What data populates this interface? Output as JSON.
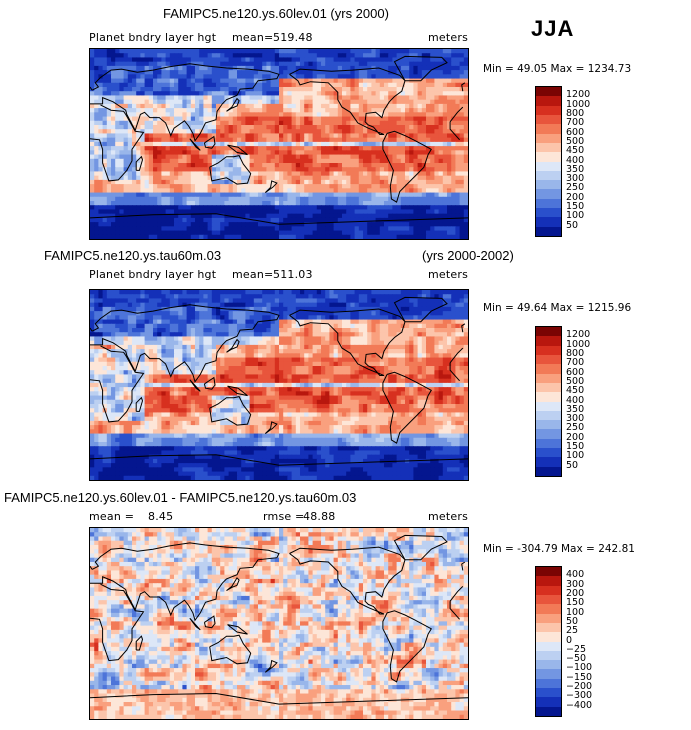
{
  "season": "JJA",
  "chart_data": [
    {
      "type": "heatmap",
      "title": "FAMIPC5.ne120.ys.60lev.01 (yrs 2000)",
      "variable": "Planet bndry layer hgt",
      "mean_text": "mean=",
      "mean_value": "519.48",
      "units": "meters",
      "min_label": "Min =",
      "min_value": "49.05",
      "max_label": "Max =",
      "max_value": "1234.73",
      "colorbar_ticks": [
        "1200",
        "1000",
        "800",
        "700",
        "600",
        "500",
        "450",
        "400",
        "350",
        "300",
        "250",
        "200",
        "150",
        "100",
        "50"
      ]
    },
    {
      "type": "heatmap",
      "title_left": "FAMIPC5.ne120.ys.tau60m.03",
      "title_right": "(yrs 2000-2002)",
      "variable": "Planet bndry layer hgt",
      "mean_text": "mean=",
      "mean_value": "511.03",
      "units": "meters",
      "min_label": "Min =",
      "min_value": "49.64",
      "max_label": "Max =",
      "max_value": "1215.96",
      "colorbar_ticks": [
        "1200",
        "1000",
        "800",
        "700",
        "600",
        "500",
        "450",
        "400",
        "350",
        "300",
        "250",
        "200",
        "150",
        "100",
        "50"
      ]
    },
    {
      "type": "heatmap",
      "title": "FAMIPC5.ne120.ys.60lev.01 - FAMIPC5.ne120.ys.tau60m.03",
      "mean_text": "mean =",
      "mean_value": "8.45",
      "rmse_text": "rmse =",
      "rmse_value": "48.88",
      "units": "meters",
      "min_label": "Min =",
      "min_value": "-304.79",
      "max_label": "Max =",
      "max_value": "242.81",
      "colorbar_ticks": [
        "400",
        "300",
        "200",
        "150",
        "100",
        "50",
        "25",
        "0",
        "−25",
        "−50",
        "−100",
        "−150",
        "−200",
        "−300",
        "−400"
      ]
    }
  ],
  "palettes": {
    "abs": [
      "#7a0403",
      "#b8170e",
      "#d7301f",
      "#e8553c",
      "#f27a57",
      "#f9a07e",
      "#fcc5ab",
      "#fde6d8",
      "#dde7f7",
      "#bcd0f1",
      "#99b6ea",
      "#7396e2",
      "#4d74d9",
      "#2a50cc",
      "#1430b8",
      "#04168f"
    ],
    "diff": [
      "#7a0403",
      "#b8170e",
      "#d7301f",
      "#e8553c",
      "#f27a57",
      "#f9a07e",
      "#fcc5ab",
      "#fde6d8",
      "#dde7f7",
      "#bcd0f1",
      "#99b6ea",
      "#7396e2",
      "#4d74d9",
      "#2a50cc",
      "#1430b8",
      "#04168f"
    ]
  }
}
